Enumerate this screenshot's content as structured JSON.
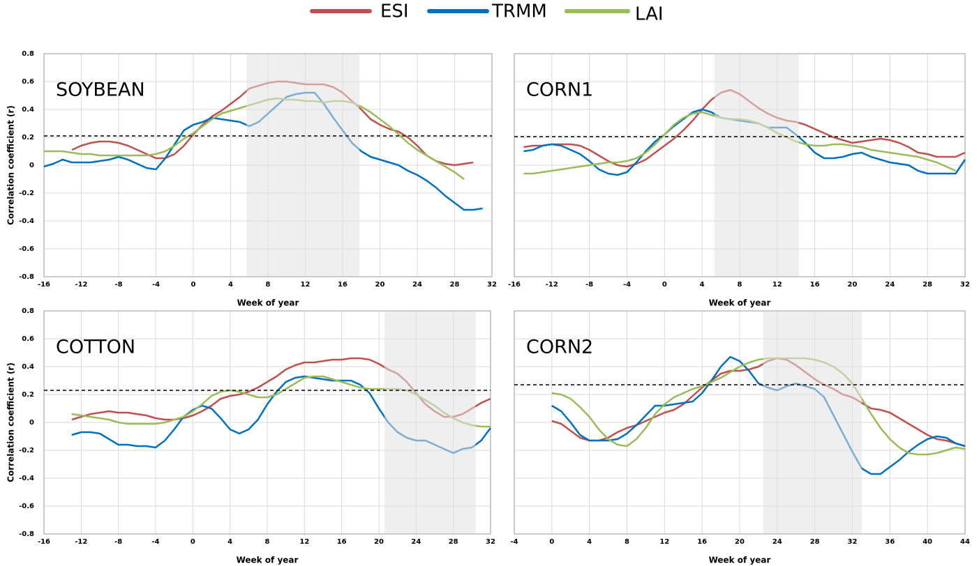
{
  "legend": [
    {
      "name": "ESI",
      "color": "#c0504d"
    },
    {
      "name": "TRMM",
      "color": "#0070c0"
    },
    {
      "name": "LAI",
      "color": "#9bbb59"
    }
  ],
  "chart_data": [
    {
      "type": "line",
      "title": "SOYBEAN",
      "xlabel": "Week of year",
      "ylabel": "Correlation coefficient (r)",
      "ytick_labels": true,
      "xlim": [
        -16,
        32
      ],
      "xticks": [
        -16,
        -12,
        -8,
        -4,
        0,
        4,
        8,
        12,
        16,
        20,
        24,
        28,
        32
      ],
      "ylim": [
        -0.8,
        0.8
      ],
      "yticks": [
        -0.8,
        -0.6,
        -0.4,
        -0.2,
        0,
        0.2,
        0.4,
        0.6,
        0.8
      ],
      "grid": true,
      "highlight": [
        5.7,
        17.8
      ],
      "threshold": 0.21,
      "x": [
        -16,
        -15,
        -14,
        -13,
        -12,
        -11,
        -10,
        -9,
        -8,
        -7,
        -6,
        -5,
        -4,
        -3,
        -2,
        -1,
        0,
        1,
        2,
        3,
        4,
        5,
        6,
        7,
        8,
        9,
        10,
        11,
        12,
        13,
        14,
        15,
        16,
        17,
        18,
        19,
        20,
        21,
        22,
        23,
        24,
        25,
        26,
        27,
        28,
        29,
        30,
        31
      ],
      "series": [
        {
          "values": [
            null,
            null,
            null,
            0.11,
            0.14,
            0.16,
            0.17,
            0.17,
            0.16,
            0.14,
            0.11,
            0.08,
            0.05,
            0.05,
            0.08,
            0.14,
            0.22,
            0.29,
            0.35,
            0.39,
            0.44,
            0.49,
            0.55,
            0.57,
            0.59,
            0.6,
            0.6,
            0.59,
            0.58,
            0.58,
            0.58,
            0.56,
            0.52,
            0.46,
            0.4,
            0.33,
            0.29,
            0.26,
            0.24,
            0.2,
            0.14,
            0.07,
            0.03,
            0.01,
            0.0,
            0.01,
            0.02,
            null
          ]
        },
        {
          "values": [
            -0.01,
            0.01,
            0.04,
            0.02,
            0.02,
            0.02,
            0.03,
            0.04,
            0.06,
            0.04,
            0.01,
            -0.02,
            -0.03,
            0.05,
            0.15,
            0.25,
            0.29,
            0.31,
            0.34,
            0.33,
            0.32,
            0.31,
            0.28,
            0.31,
            0.37,
            0.43,
            0.49,
            0.51,
            0.52,
            0.52,
            0.44,
            0.34,
            0.25,
            0.16,
            0.1,
            0.06,
            0.04,
            0.02,
            0.0,
            -0.04,
            -0.07,
            -0.11,
            -0.16,
            -0.22,
            -0.27,
            -0.32,
            -0.32,
            -0.31
          ]
        },
        {
          "values": [
            0.1,
            0.1,
            0.1,
            0.09,
            0.08,
            0.08,
            0.07,
            0.07,
            0.07,
            0.07,
            0.07,
            0.07,
            0.08,
            0.1,
            0.14,
            0.19,
            0.23,
            0.28,
            0.33,
            0.37,
            0.39,
            0.41,
            0.43,
            0.45,
            0.47,
            0.48,
            0.47,
            0.47,
            0.46,
            0.46,
            0.45,
            0.46,
            0.46,
            0.45,
            0.42,
            0.38,
            0.33,
            0.28,
            0.22,
            0.16,
            0.11,
            0.07,
            0.03,
            -0.01,
            -0.05,
            -0.1,
            null,
            null
          ]
        }
      ]
    },
    {
      "type": "line",
      "title": "CORN1",
      "xlabel": "Week of year",
      "ytick_labels": false,
      "xlim": [
        -16,
        32
      ],
      "xticks": [
        -16,
        -12,
        -8,
        -4,
        0,
        4,
        8,
        12,
        16,
        20,
        24,
        28,
        32
      ],
      "ylim": [
        -0.8,
        0.8
      ],
      "yticks": [
        -0.8,
        -0.6,
        -0.4,
        -0.2,
        0,
        0.2,
        0.4,
        0.6,
        0.8
      ],
      "grid": true,
      "highlight": [
        5.3,
        14.3
      ],
      "threshold": 0.205,
      "x": [
        -15,
        -14,
        -13,
        -12,
        -11,
        -10,
        -9,
        -8,
        -7,
        -6,
        -5,
        -4,
        -3,
        -2,
        -1,
        0,
        1,
        2,
        3,
        4,
        5,
        6,
        7,
        8,
        9,
        10,
        11,
        12,
        13,
        14,
        15,
        16,
        17,
        18,
        19,
        20,
        21,
        22,
        23,
        24,
        25,
        26,
        27,
        28,
        29,
        30,
        31,
        32
      ],
      "series": [
        {
          "values": [
            0.13,
            0.14,
            0.14,
            0.15,
            0.15,
            0.15,
            0.14,
            0.11,
            0.07,
            0.03,
            0.0,
            -0.01,
            0.01,
            0.04,
            0.09,
            0.14,
            0.19,
            0.25,
            0.32,
            0.4,
            0.47,
            0.52,
            0.54,
            0.51,
            0.46,
            0.41,
            0.37,
            0.34,
            0.32,
            0.31,
            0.29,
            0.26,
            0.23,
            0.2,
            0.18,
            0.16,
            0.17,
            0.18,
            0.19,
            0.18,
            0.16,
            0.13,
            0.09,
            0.08,
            0.06,
            0.06,
            0.06,
            0.09
          ]
        },
        {
          "values": [
            0.1,
            0.11,
            0.14,
            0.15,
            0.14,
            0.11,
            0.08,
            0.03,
            -0.03,
            -0.06,
            -0.07,
            -0.05,
            0.02,
            0.1,
            0.17,
            0.22,
            0.28,
            0.33,
            0.38,
            0.4,
            0.38,
            0.34,
            0.33,
            0.32,
            0.31,
            0.3,
            0.27,
            0.27,
            0.27,
            0.22,
            0.16,
            0.09,
            0.05,
            0.05,
            0.06,
            0.08,
            0.09,
            0.06,
            0.04,
            0.02,
            0.01,
            0.0,
            -0.04,
            -0.06,
            -0.06,
            -0.06,
            -0.06,
            0.04
          ]
        },
        {
          "values": [
            -0.06,
            -0.06,
            -0.05,
            -0.04,
            -0.03,
            -0.02,
            -0.01,
            0.0,
            0.01,
            0.02,
            0.02,
            0.03,
            0.05,
            0.09,
            0.15,
            0.22,
            0.29,
            0.34,
            0.37,
            0.38,
            0.36,
            0.34,
            0.33,
            0.33,
            0.32,
            0.3,
            0.27,
            0.23,
            0.2,
            0.17,
            0.15,
            0.14,
            0.14,
            0.15,
            0.15,
            0.14,
            0.13,
            0.11,
            0.1,
            0.09,
            0.08,
            0.07,
            0.06,
            0.04,
            0.02,
            -0.01,
            -0.04,
            null
          ]
        }
      ]
    },
    {
      "type": "line",
      "title": "COTTON",
      "xlabel": "Week of year",
      "ylabel": "Correlation coefficient (r)",
      "ytick_labels": true,
      "xlim": [
        -16,
        32
      ],
      "xticks": [
        -16,
        -12,
        -8,
        -4,
        0,
        4,
        8,
        12,
        16,
        20,
        24,
        28,
        32
      ],
      "ylim": [
        -0.8,
        0.8
      ],
      "yticks": [
        -0.8,
        -0.6,
        -0.4,
        -0.2,
        0,
        0.2,
        0.4,
        0.6,
        0.8
      ],
      "grid": true,
      "highlight": [
        20.6,
        30.4
      ],
      "threshold": 0.23,
      "x": [
        -13,
        -12,
        -11,
        -10,
        -9,
        -8,
        -7,
        -6,
        -5,
        -4,
        -3,
        -2,
        -1,
        0,
        1,
        2,
        3,
        4,
        5,
        6,
        7,
        8,
        9,
        10,
        11,
        12,
        13,
        14,
        15,
        16,
        17,
        18,
        19,
        20,
        21,
        22,
        23,
        24,
        25,
        26,
        27,
        28,
        29,
        30,
        31,
        32
      ],
      "series": [
        {
          "values": [
            0.02,
            0.04,
            0.06,
            0.07,
            0.08,
            0.07,
            0.07,
            0.06,
            0.05,
            0.03,
            0.02,
            0.02,
            0.03,
            0.05,
            0.08,
            0.12,
            0.17,
            0.19,
            0.2,
            0.22,
            0.25,
            0.29,
            0.33,
            0.38,
            0.41,
            0.43,
            0.43,
            0.44,
            0.45,
            0.45,
            0.46,
            0.46,
            0.45,
            0.42,
            0.38,
            0.35,
            0.29,
            0.21,
            0.13,
            0.08,
            0.04,
            0.04,
            0.06,
            0.1,
            0.14,
            0.17
          ]
        },
        {
          "values": [
            -0.09,
            -0.07,
            -0.07,
            -0.08,
            -0.12,
            -0.16,
            -0.16,
            -0.17,
            -0.17,
            -0.18,
            -0.13,
            -0.05,
            0.04,
            0.09,
            0.12,
            0.1,
            0.03,
            -0.05,
            -0.08,
            -0.05,
            0.02,
            0.13,
            0.22,
            0.29,
            0.32,
            0.33,
            0.32,
            0.31,
            0.3,
            0.3,
            0.3,
            0.27,
            0.21,
            0.1,
            0.0,
            -0.07,
            -0.11,
            -0.13,
            -0.13,
            -0.16,
            -0.19,
            -0.22,
            -0.19,
            -0.18,
            -0.13,
            -0.04
          ]
        },
        {
          "values": [
            0.06,
            0.05,
            0.04,
            0.03,
            0.02,
            0.0,
            -0.01,
            -0.01,
            -0.01,
            -0.01,
            0.0,
            0.02,
            0.04,
            0.08,
            0.13,
            0.19,
            0.22,
            0.23,
            0.22,
            0.2,
            0.18,
            0.18,
            0.2,
            0.24,
            0.28,
            0.32,
            0.33,
            0.33,
            0.31,
            0.29,
            0.27,
            0.25,
            0.24,
            0.24,
            0.24,
            0.24,
            0.23,
            0.2,
            0.16,
            0.12,
            0.07,
            0.03,
            0.0,
            -0.02,
            -0.03,
            -0.03
          ]
        }
      ]
    },
    {
      "type": "line",
      "title": "CORN2",
      "xlabel": "Week of year",
      "ytick_labels": false,
      "xlim": [
        -4,
        44
      ],
      "xticks": [
        -4,
        0,
        4,
        8,
        12,
        16,
        20,
        24,
        28,
        32,
        36,
        40,
        44
      ],
      "ylim": [
        -0.8,
        0.8
      ],
      "yticks": [
        -0.8,
        -0.6,
        -0.4,
        -0.2,
        0,
        0.2,
        0.4,
        0.6,
        0.8
      ],
      "grid": true,
      "highlight": [
        22.5,
        33
      ],
      "threshold": 0.27,
      "x": [
        0,
        1,
        2,
        3,
        4,
        5,
        6,
        7,
        8,
        9,
        10,
        11,
        12,
        13,
        14,
        15,
        16,
        17,
        18,
        19,
        20,
        21,
        22,
        23,
        24,
        25,
        26,
        27,
        28,
        29,
        30,
        31,
        32,
        33,
        34,
        35,
        36,
        37,
        38,
        39,
        40,
        41,
        42,
        43,
        44
      ],
      "series": [
        {
          "values": [
            0.01,
            -0.01,
            -0.06,
            -0.11,
            -0.13,
            -0.13,
            -0.11,
            -0.07,
            -0.04,
            -0.02,
            0.01,
            0.04,
            0.07,
            0.09,
            0.13,
            0.19,
            0.25,
            0.3,
            0.35,
            0.37,
            0.37,
            0.38,
            0.4,
            0.44,
            0.46,
            0.45,
            0.41,
            0.36,
            0.31,
            0.27,
            0.24,
            0.2,
            0.18,
            0.14,
            0.1,
            0.09,
            0.07,
            0.03,
            -0.01,
            -0.05,
            -0.09,
            -0.12,
            -0.13,
            -0.15,
            -0.17
          ]
        },
        {
          "values": [
            0.12,
            0.08,
            0.0,
            -0.09,
            -0.13,
            -0.13,
            -0.13,
            -0.12,
            -0.08,
            -0.02,
            0.05,
            0.12,
            0.12,
            0.13,
            0.14,
            0.15,
            0.21,
            0.3,
            0.4,
            0.47,
            0.44,
            0.37,
            0.28,
            0.25,
            0.23,
            0.26,
            0.28,
            0.26,
            0.24,
            0.18,
            0.05,
            -0.08,
            -0.21,
            -0.33,
            -0.37,
            -0.37,
            -0.32,
            -0.27,
            -0.21,
            -0.16,
            -0.12,
            -0.1,
            -0.11,
            -0.15,
            -0.17
          ]
        },
        {
          "values": [
            0.21,
            0.2,
            0.17,
            0.11,
            0.04,
            -0.05,
            -0.12,
            -0.16,
            -0.17,
            -0.12,
            -0.04,
            0.06,
            0.13,
            0.18,
            0.21,
            0.24,
            0.26,
            0.29,
            0.32,
            0.36,
            0.4,
            0.43,
            0.45,
            0.46,
            0.46,
            0.46,
            0.46,
            0.46,
            0.45,
            0.43,
            0.4,
            0.35,
            0.28,
            0.17,
            0.06,
            -0.04,
            -0.12,
            -0.18,
            -0.22,
            -0.23,
            -0.23,
            -0.22,
            -0.2,
            -0.18,
            -0.19
          ]
        }
      ]
    }
  ]
}
